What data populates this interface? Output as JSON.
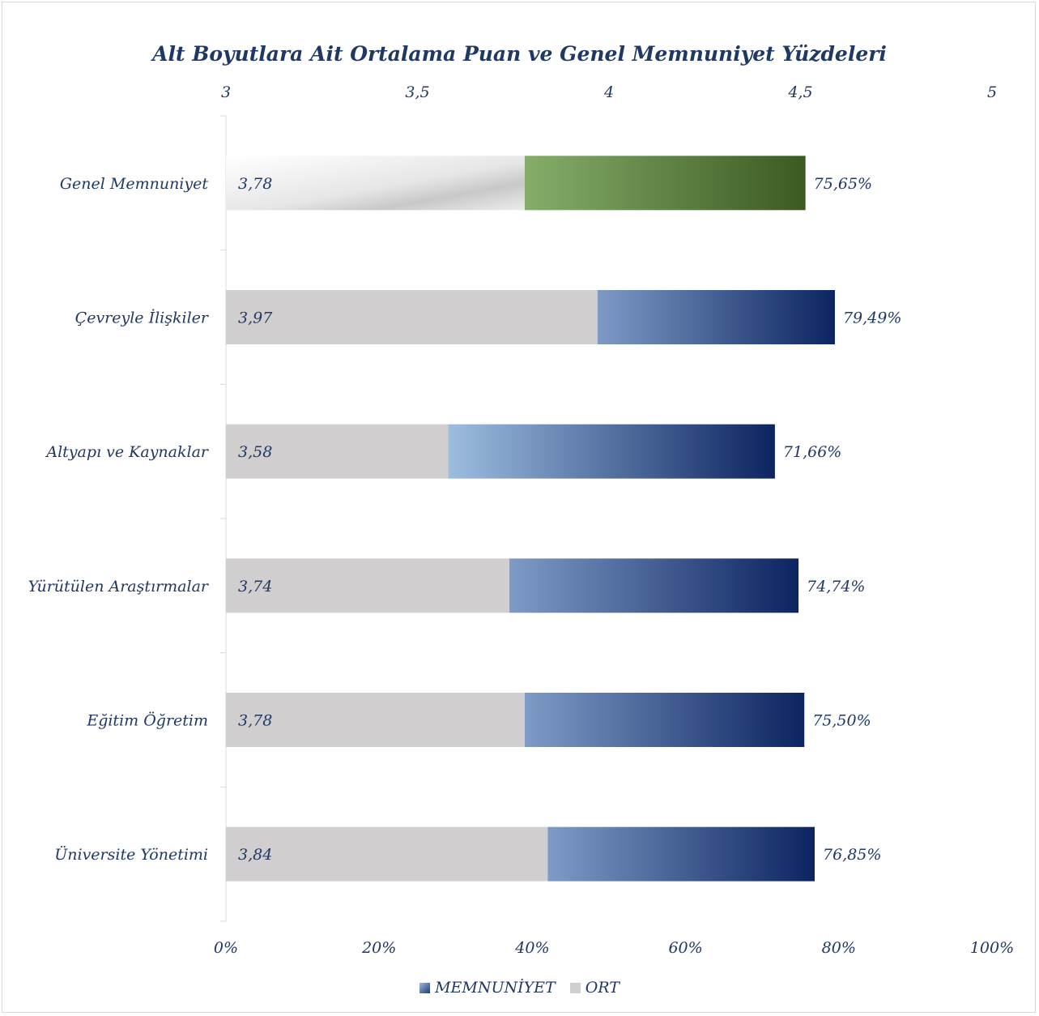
{
  "chart_data": {
    "type": "bar",
    "orientation": "horizontal",
    "stacked": true,
    "title": "Alt Boyutlara Ait Ortalama Puan ve Genel Memnuniyet Yüzdeleri",
    "categories": [
      "Genel Memnuniyet",
      "Çevreyle İlişkiler",
      "Altyapı ve Kaynaklar",
      "Yürütülen Araştırmalar",
      "Eğitim Öğretim",
      "Üniversite Yönetimi"
    ],
    "series": [
      {
        "name": "ORT",
        "axis": "top",
        "values": [
          3.78,
          3.97,
          3.58,
          3.74,
          3.78,
          3.84
        ],
        "labels": [
          "3,78",
          "3,97",
          "3,58",
          "3,74",
          "3,78",
          "3,84"
        ],
        "color": "#d0cece"
      },
      {
        "name": "MEMNUNİYET",
        "axis": "bottom",
        "values": [
          75.65,
          79.49,
          71.66,
          74.74,
          75.5,
          76.85
        ],
        "labels": [
          "75,65%",
          "79,49%",
          "71,66%",
          "74,74%",
          "75,50%",
          "76,85%"
        ],
        "color": "#1f3b7a",
        "highlight_color": "#3e5f24"
      }
    ],
    "top_axis": {
      "ticks": [
        "3",
        "3,5",
        "4",
        "4,5",
        "5"
      ],
      "range": [
        3,
        5
      ]
    },
    "bottom_axis": {
      "ticks": [
        "0%",
        "20%",
        "40%",
        "60%",
        "80%",
        "100%"
      ],
      "range": [
        0,
        100
      ]
    },
    "legend": {
      "position": "bottom",
      "entries": [
        "MEMNUNİYET",
        "ORT"
      ]
    },
    "grid": false
  }
}
